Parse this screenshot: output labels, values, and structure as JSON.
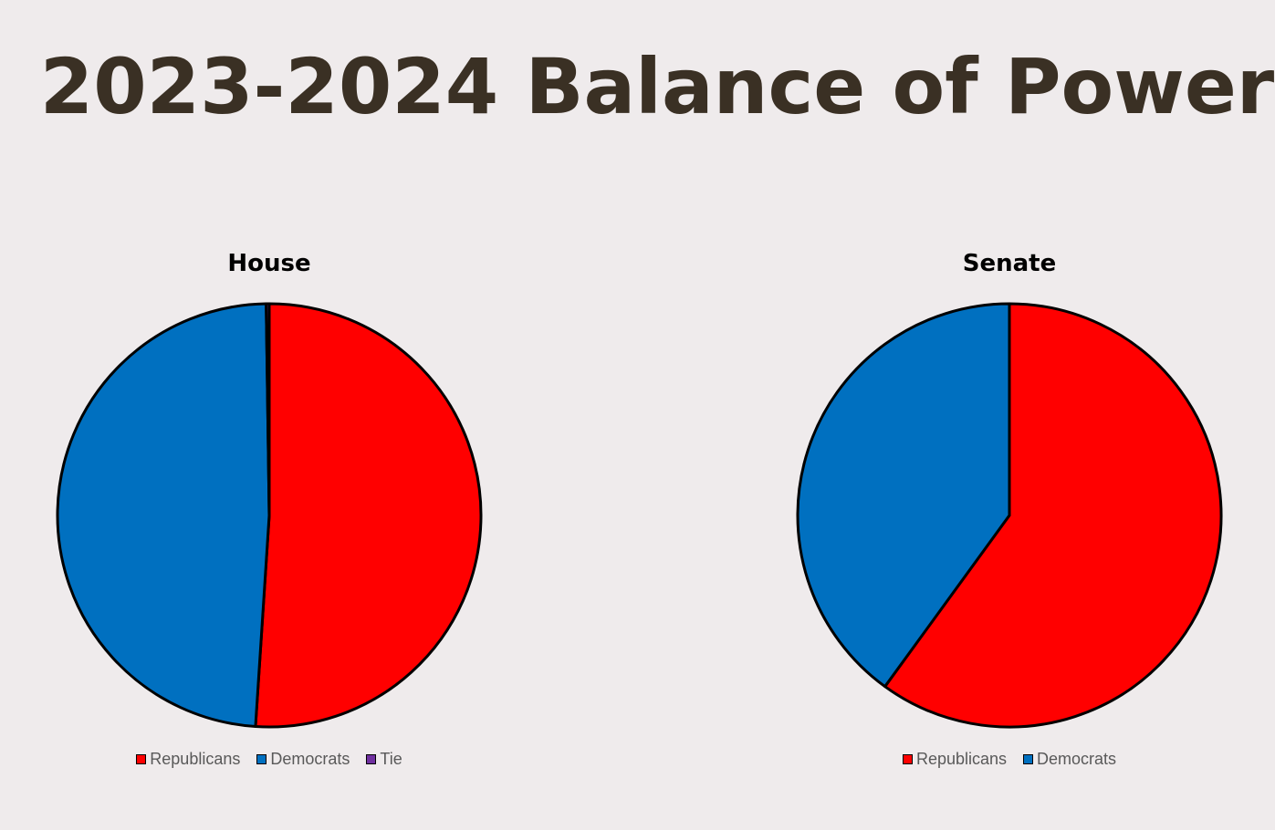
{
  "title": "2023-2024 Balance of Power",
  "chart_data": [
    {
      "type": "pie",
      "title": "House",
      "slices": [
        {
          "label": "Republicans",
          "value": 222,
          "color": "#ff0000"
        },
        {
          "label": "Democrats",
          "value": 212,
          "color": "#0070c0"
        },
        {
          "label": "Tie",
          "value": 1,
          "color": "#7030a0"
        }
      ],
      "legend": "bottom"
    },
    {
      "type": "pie",
      "title": "Senate",
      "slices": [
        {
          "label": "Republicans",
          "value": 60,
          "color": "#ff0000"
        },
        {
          "label": "Democrats",
          "value": 40,
          "color": "#0070c0"
        }
      ],
      "legend": "bottom"
    }
  ]
}
